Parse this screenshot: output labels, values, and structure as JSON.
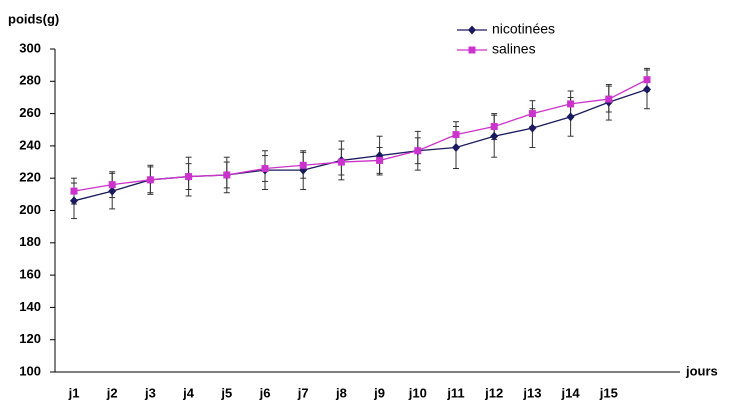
{
  "chart_data": {
    "type": "line",
    "y_label": "poids(g)",
    "x_label": "jours",
    "categories": [
      "j1",
      "j2",
      "j3",
      "j4",
      "j5",
      "j6",
      "j7",
      "j8",
      "j9",
      "j10",
      "j11",
      "j12",
      "j13",
      "j14",
      "j15",
      null
    ],
    "series": [
      {
        "name": "nicotinées",
        "color": "#1a1a5e",
        "marker": "diamond",
        "values": [
          206,
          212,
          219,
          221,
          222,
          225,
          225,
          231,
          234,
          237,
          239,
          246,
          251,
          258,
          267,
          275
        ],
        "errors": [
          11,
          11,
          9,
          12,
          11,
          12,
          12,
          12,
          12,
          12,
          13,
          13,
          12,
          12,
          11,
          12
        ]
      },
      {
        "name": "salines",
        "color": "#cc33cc",
        "marker": "square",
        "values": [
          212,
          216,
          219,
          221,
          222,
          226,
          228,
          230,
          231,
          237,
          247,
          252,
          260,
          266,
          269,
          281
        ],
        "errors": [
          8,
          8,
          8,
          8,
          8,
          8,
          8,
          8,
          8,
          8,
          8,
          8,
          8,
          8,
          8,
          7
        ]
      }
    ],
    "ylim": [
      100,
      300
    ],
    "yticks": [
      100,
      120,
      140,
      160,
      180,
      200,
      220,
      240,
      260,
      280,
      300
    ],
    "grid": false,
    "legend": "top-right"
  }
}
